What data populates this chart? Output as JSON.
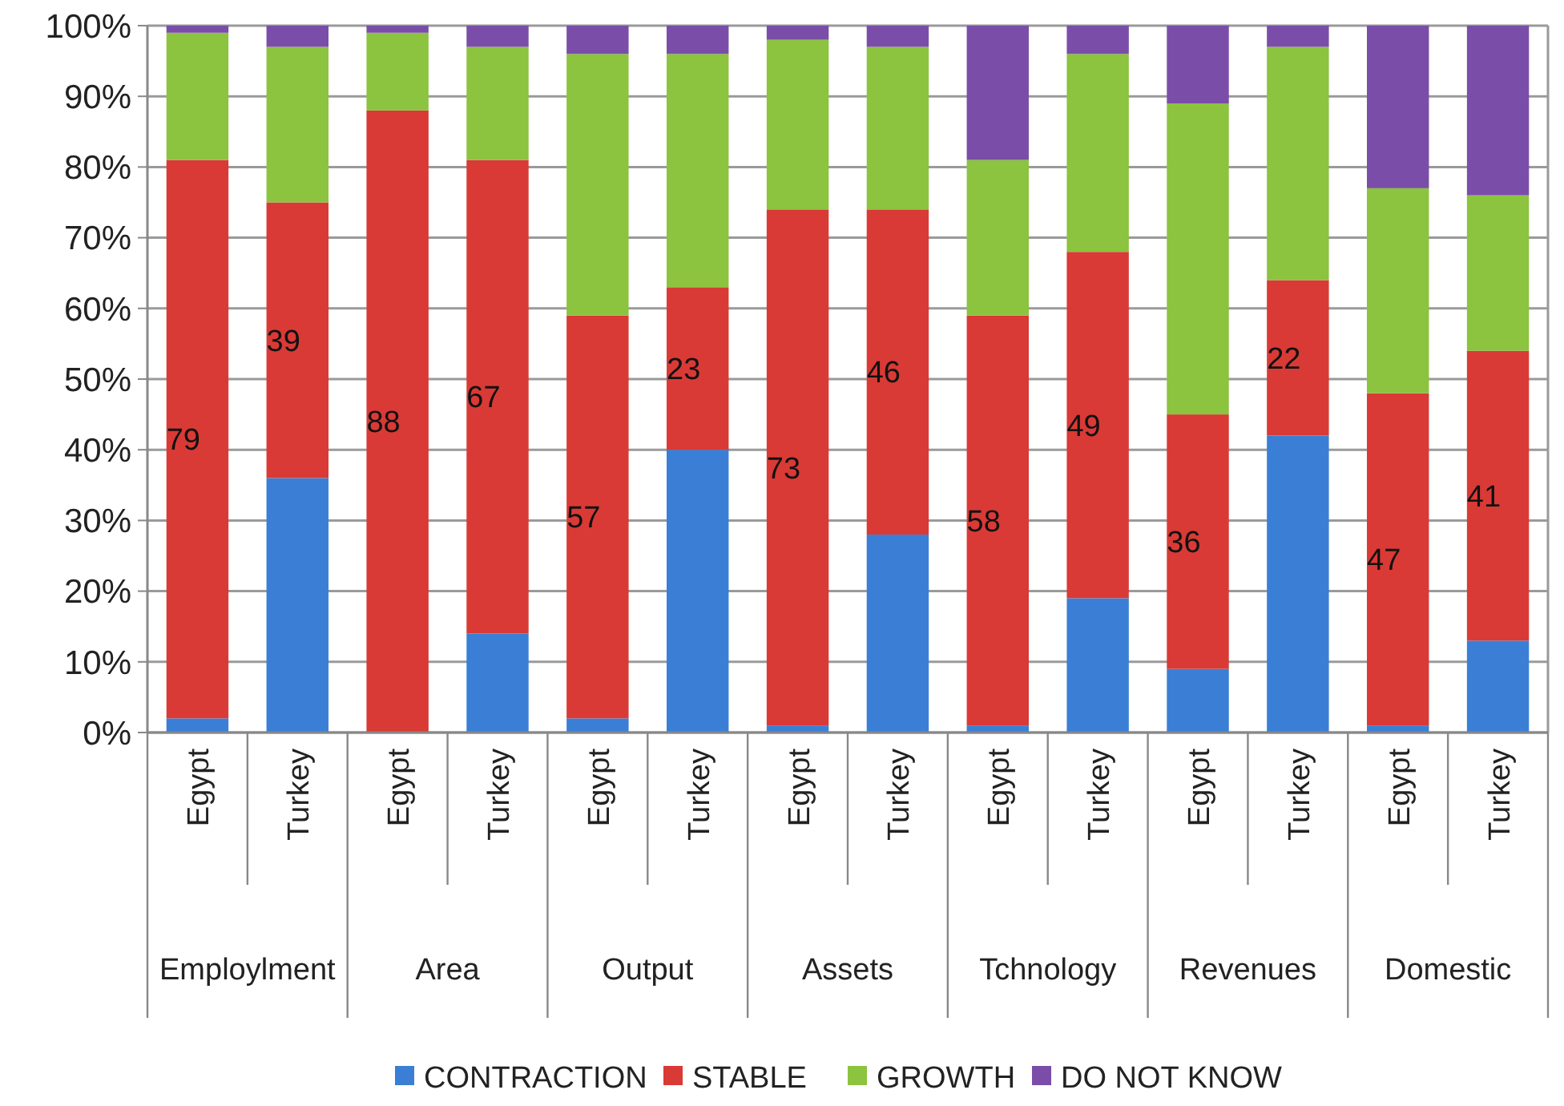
{
  "chart_data": {
    "type": "bar",
    "stacked": true,
    "categories": [
      "Egypt",
      "Turkey",
      "Egypt",
      "Turkey",
      "Egypt",
      "Turkey",
      "Egypt",
      "Turkey",
      "Egypt",
      "Turkey",
      "Egypt",
      "Turkey",
      "Egypt",
      "Turkey"
    ],
    "annotations": [
      "Employlment",
      "Area",
      "Output",
      "Assets",
      "Tchnology",
      "Revenues",
      "Domestic"
    ],
    "series": [
      {
        "name": "CONTRACTION",
        "color": "#3a7fd5",
        "values": [
          2,
          36,
          0,
          14,
          2,
          40,
          1,
          28,
          1,
          19,
          9,
          42,
          1,
          13
        ]
      },
      {
        "name": "STABLE",
        "color": "#d93a35",
        "values": [
          79,
          39,
          88,
          67,
          57,
          23,
          73,
          46,
          58,
          49,
          36,
          22,
          47,
          41
        ],
        "value_labels": [
          "79",
          "39",
          "88",
          "67",
          "57",
          "23",
          "73",
          "46",
          "58",
          "49",
          "36",
          "22",
          "47",
          "41"
        ]
      },
      {
        "name": "GROWTH",
        "color": "#8cc33f",
        "values": [
          18,
          22,
          11,
          16,
          37,
          33,
          24,
          23,
          22,
          28,
          44,
          33,
          29,
          22
        ]
      },
      {
        "name": "DO NOT KNOW",
        "color": "#7a4ea8",
        "values": [
          1,
          3,
          1,
          3,
          4,
          4,
          2,
          3,
          19,
          4,
          11,
          3,
          23,
          24
        ]
      }
    ],
    "ylim": [
      0,
      100
    ],
    "yticks": [
      {
        "value": 0,
        "label": "0%"
      },
      {
        "value": 10,
        "label": "10%"
      },
      {
        "value": 20,
        "label": "20%"
      },
      {
        "value": 30,
        "label": "30%"
      },
      {
        "value": 40,
        "label": "40%"
      },
      {
        "value": 50,
        "label": "50%"
      },
      {
        "value": 60,
        "label": "60%"
      },
      {
        "value": 70,
        "label": "70%"
      },
      {
        "value": 80,
        "label": "80%"
      },
      {
        "value": 90,
        "label": "90%"
      },
      {
        "value": 100,
        "label": "100%"
      }
    ],
    "grid": "y",
    "legend": "bottom"
  }
}
